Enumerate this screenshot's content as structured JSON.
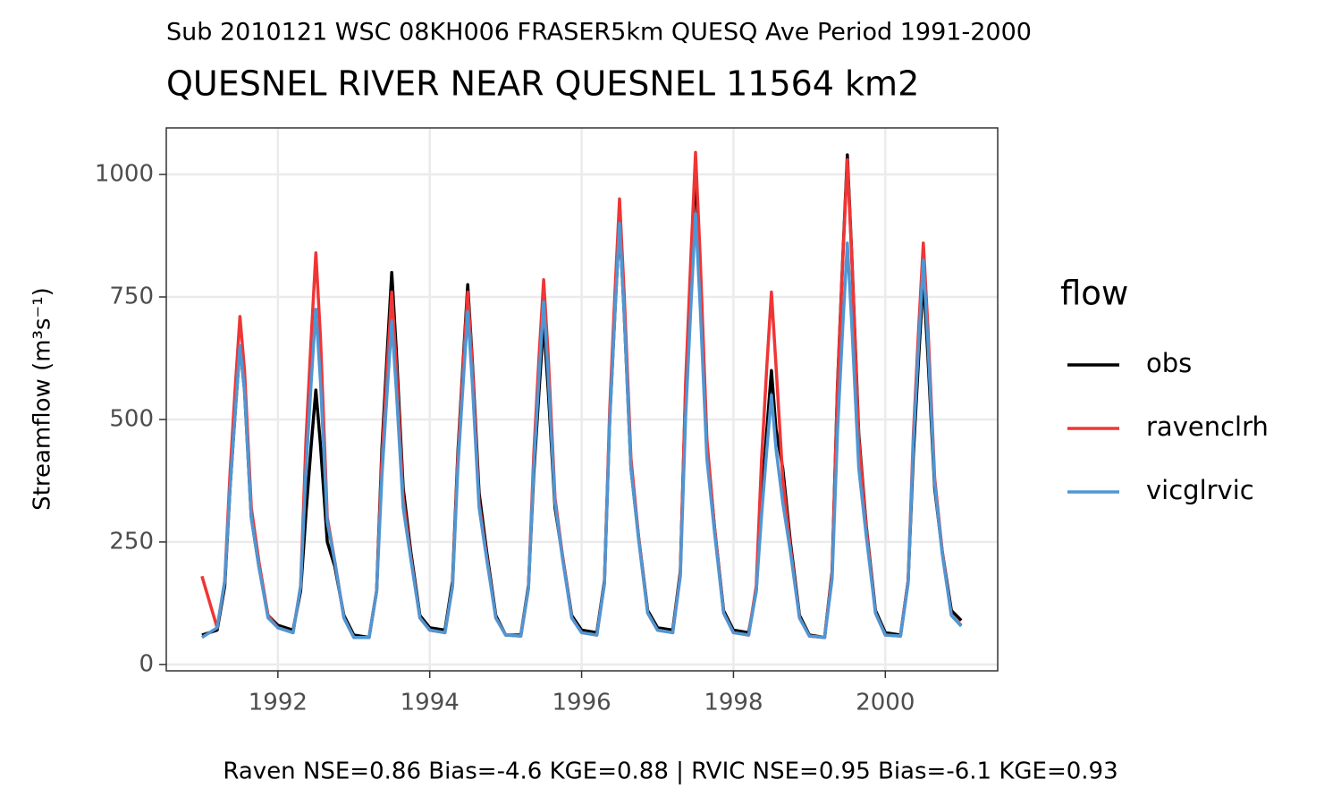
{
  "chart_data": {
    "type": "line",
    "subtitle": "Sub 2010121 WSC 08KH006 FRASER5km QUESQ Ave Period 1991-2000",
    "title": "QUESNEL RIVER NEAR QUESNEL 11564 km2",
    "y_label": "Streamflow (m³s⁻¹)",
    "legend_title": "flow",
    "legend_position": "right",
    "annotation": "Raven NSE=0.86 Bias=-4.6 KGE=0.88 | RVIC NSE=0.95 Bias=-6.1 KGE=0.93",
    "grid": true,
    "xlim": [
      1990.53,
      2001.48
    ],
    "xticks": [
      1992,
      1994,
      1996,
      1998,
      2000
    ],
    "ylim": [
      -13,
      1095
    ],
    "yticks": [
      0,
      250,
      500,
      750,
      1000
    ],
    "x": [
      1991.0,
      1991.2,
      1991.3,
      1991.37,
      1991.44,
      1991.5,
      1991.56,
      1991.65,
      1991.75,
      1991.87,
      1992.0,
      1992.2,
      1992.3,
      1992.37,
      1992.44,
      1992.5,
      1992.56,
      1992.65,
      1992.75,
      1992.87,
      1993.0,
      1993.2,
      1993.3,
      1993.37,
      1993.44,
      1993.5,
      1993.56,
      1993.65,
      1993.75,
      1993.87,
      1994.0,
      1994.2,
      1994.3,
      1994.37,
      1994.44,
      1994.5,
      1994.56,
      1994.65,
      1994.75,
      1994.87,
      1995.0,
      1995.2,
      1995.3,
      1995.37,
      1995.44,
      1995.5,
      1995.56,
      1995.65,
      1995.75,
      1995.87,
      1996.0,
      1996.2,
      1996.3,
      1996.37,
      1996.44,
      1996.5,
      1996.56,
      1996.65,
      1996.75,
      1996.87,
      1997.0,
      1997.2,
      1997.3,
      1997.37,
      1997.44,
      1997.5,
      1997.56,
      1997.65,
      1997.75,
      1997.87,
      1998.0,
      1998.2,
      1998.3,
      1998.37,
      1998.44,
      1998.5,
      1998.56,
      1998.65,
      1998.75,
      1998.87,
      1999.0,
      1999.2,
      1999.3,
      1999.37,
      1999.44,
      1999.5,
      1999.56,
      1999.65,
      1999.75,
      1999.87,
      2000.0,
      2000.2,
      2000.3,
      2000.37,
      2000.44,
      2000.5,
      2000.56,
      2000.65,
      2000.75,
      2000.87,
      2001.0
    ],
    "series": [
      {
        "name": "obs",
        "color": "#000000",
        "values": [
          60,
          70,
          160,
          360,
          520,
          650,
          560,
          300,
          200,
          100,
          80,
          70,
          150,
          310,
          450,
          560,
          450,
          250,
          200,
          100,
          60,
          55,
          150,
          440,
          640,
          800,
          640,
          360,
          230,
          100,
          75,
          70,
          170,
          430,
          620,
          775,
          620,
          350,
          230,
          100,
          60,
          60,
          160,
          390,
          560,
          700,
          560,
          320,
          220,
          100,
          70,
          65,
          170,
          500,
          720,
          900,
          720,
          400,
          260,
          110,
          75,
          70,
          190,
          560,
          810,
          1010,
          810,
          450,
          280,
          110,
          70,
          65,
          150,
          330,
          480,
          600,
          480,
          400,
          250,
          100,
          60,
          55,
          190,
          570,
          830,
          1040,
          830,
          470,
          280,
          110,
          65,
          60,
          170,
          430,
          630,
          790,
          630,
          360,
          230,
          110,
          90
        ]
      },
      {
        "name": "ravenclrh",
        "color": "#f03535",
        "values": [
          180,
          75,
          170,
          390,
          570,
          710,
          600,
          320,
          210,
          100,
          75,
          65,
          160,
          460,
          670,
          840,
          670,
          300,
          210,
          95,
          55,
          55,
          150,
          420,
          610,
          760,
          610,
          340,
          220,
          95,
          70,
          65,
          160,
          420,
          610,
          760,
          610,
          330,
          220,
          95,
          60,
          58,
          155,
          430,
          630,
          785,
          630,
          340,
          220,
          95,
          65,
          60,
          165,
          520,
          760,
          950,
          760,
          420,
          260,
          105,
          70,
          65,
          185,
          575,
          835,
          1045,
          835,
          460,
          280,
          105,
          65,
          60,
          160,
          420,
          610,
          760,
          610,
          380,
          240,
          95,
          58,
          55,
          185,
          565,
          825,
          1030,
          825,
          460,
          275,
          105,
          60,
          58,
          170,
          470,
          690,
          860,
          690,
          380,
          230,
          100,
          80
        ]
      },
      {
        "name": "vicglrvic",
        "color": "#5096d2",
        "values": [
          55,
          75,
          170,
          360,
          520,
          650,
          560,
          300,
          200,
          95,
          75,
          65,
          160,
          400,
          580,
          725,
          580,
          290,
          210,
          95,
          55,
          55,
          150,
          385,
          560,
          700,
          560,
          320,
          215,
          95,
          70,
          65,
          160,
          400,
          575,
          720,
          575,
          320,
          215,
          95,
          60,
          58,
          155,
          405,
          590,
          740,
          590,
          330,
          215,
          95,
          65,
          60,
          165,
          495,
          720,
          900,
          720,
          400,
          255,
          105,
          70,
          65,
          180,
          505,
          735,
          920,
          735,
          420,
          270,
          105,
          65,
          60,
          150,
          305,
          440,
          550,
          440,
          330,
          230,
          95,
          58,
          55,
          175,
          475,
          690,
          860,
          690,
          400,
          260,
          105,
          60,
          58,
          165,
          455,
          660,
          825,
          660,
          370,
          225,
          100,
          78
        ]
      }
    ]
  }
}
